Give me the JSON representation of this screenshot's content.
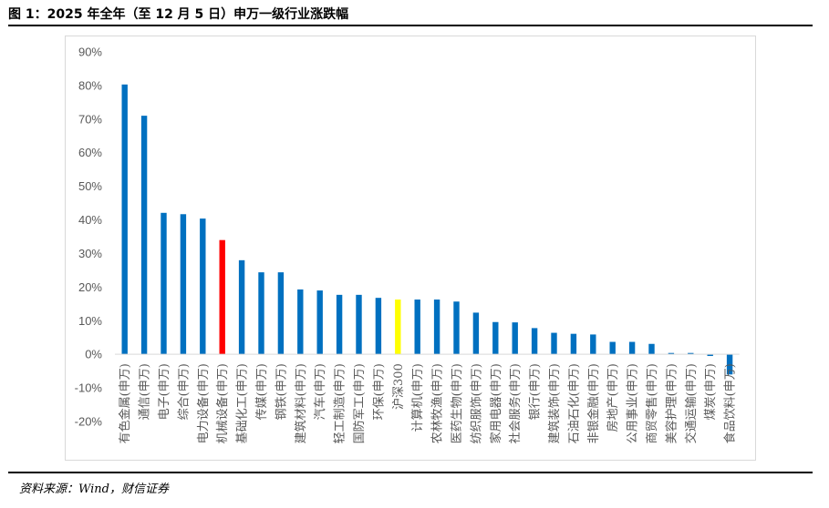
{
  "figure": {
    "title": "图 1：2025 年全年（至 12 月 5 日）申万一级行业涨跌幅",
    "source": "资料来源：Wind，财信证券"
  },
  "colors": {
    "default_bar": "#0070c0",
    "highlight_bar": "#ff0000",
    "index_bar": "#ffff00",
    "axis": "#d9d9d9",
    "tick_text": "#595959"
  },
  "chart_data": {
    "type": "bar",
    "title": "",
    "xlabel": "",
    "ylabel": "",
    "ylim": [
      -20,
      90
    ],
    "yticks": [
      90,
      80,
      70,
      60,
      50,
      40,
      30,
      20,
      10,
      0,
      -10,
      -20
    ],
    "ytick_labels": [
      "90%",
      "80%",
      "70%",
      "60%",
      "50%",
      "40%",
      "30%",
      "20%",
      "10%",
      "0%",
      "-10%",
      "-20%"
    ],
    "grid": false,
    "legend": "none",
    "categories": [
      "有色金属(申万)",
      "通信(申万)",
      "电子(申万)",
      "综合(申万)",
      "电力设备(申万)",
      "机械设备(申万)",
      "基础化工(申万)",
      "传媒(申万)",
      "钢铁(申万)",
      "建筑材料(申万)",
      "汽车(申万)",
      "轻工制造(申万)",
      "国防军工(申万)",
      "环保(申万)",
      "沪深300",
      "计算机(申万)",
      "农林牧渔(申万)",
      "医药生物(申万)",
      "纺织服饰(申万)",
      "家用电器(申万)",
      "社会服务(申万)",
      "银行(申万)",
      "建筑装饰(申万)",
      "石油石化(申万)",
      "非银金融(申万)",
      "房地产(申万)",
      "公用事业(申万)",
      "商贸零售(申万)",
      "美容护理(申万)",
      "交通运输(申万)",
      "煤炭(申万)",
      "食品饮料(申万)"
    ],
    "values": [
      80.3,
      71.0,
      42.1,
      41.7,
      40.4,
      34.0,
      28.0,
      24.4,
      24.4,
      19.3,
      19.0,
      17.7,
      17.7,
      16.8,
      16.3,
      16.3,
      16.3,
      15.7,
      12.4,
      9.6,
      9.5,
      7.8,
      6.4,
      6.1,
      5.9,
      3.7,
      3.7,
      3.1,
      0.4,
      0.4,
      -0.5,
      -6.0
    ],
    "bar_colors": [
      "#0070c0",
      "#0070c0",
      "#0070c0",
      "#0070c0",
      "#0070c0",
      "#ff0000",
      "#0070c0",
      "#0070c0",
      "#0070c0",
      "#0070c0",
      "#0070c0",
      "#0070c0",
      "#0070c0",
      "#0070c0",
      "#ffff00",
      "#0070c0",
      "#0070c0",
      "#0070c0",
      "#0070c0",
      "#0070c0",
      "#0070c0",
      "#0070c0",
      "#0070c0",
      "#0070c0",
      "#0070c0",
      "#0070c0",
      "#0070c0",
      "#0070c0",
      "#0070c0",
      "#0070c0",
      "#0070c0",
      "#0070c0"
    ]
  }
}
